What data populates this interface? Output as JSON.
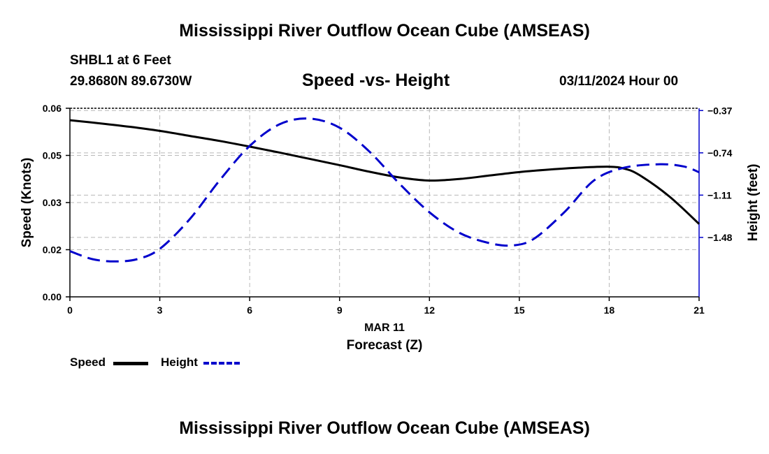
{
  "header": {
    "title": "Mississippi River Outflow Ocean Cube (AMSEAS)",
    "station": "SHBL1 at 6 Feet",
    "coords": "29.8680N  89.6730W",
    "subtitle": "Speed -vs- Height",
    "date": "03/11/2024 Hour 00"
  },
  "footer": {
    "title": "Mississippi River Outflow Ocean Cube (AMSEAS)"
  },
  "legend": {
    "speed_label": "Speed",
    "height_label": "Height"
  },
  "colors": {
    "speed": "#000000",
    "height": "#0000cc",
    "grid": "#b8b8b8"
  },
  "chart_data": {
    "type": "line",
    "title": "Speed -vs- Height",
    "xlabel": "Forecast (Z)",
    "xsublabel": "MAR 11",
    "ylabel": "Speed (Knots)",
    "y2label": "Height (feet)",
    "xlim": [
      0,
      21
    ],
    "ylim": [
      0.0,
      0.06
    ],
    "y2lim": [
      -2.0,
      -0.35
    ],
    "xticks": [
      0,
      3,
      6,
      9,
      12,
      15,
      18,
      21
    ],
    "xtick_labels": [
      "0",
      "3",
      "6",
      "9",
      "12",
      "15",
      "18",
      "21"
    ],
    "yticks": [
      0.0,
      0.015,
      0.03,
      0.045,
      0.06
    ],
    "ytick_labels": [
      "0.00",
      "0.02",
      "0.03",
      "0.05",
      "0.06"
    ],
    "y2ticks": [
      -0.37,
      -0.74,
      -1.11,
      -1.48
    ],
    "y2tick_labels": [
      "-0.37",
      "-0.74",
      "-1.11",
      "-1.48"
    ],
    "grid": true,
    "legend_position": "bottom-left",
    "series": [
      {
        "name": "Speed",
        "axis": "left",
        "style": "solid",
        "x": [
          0,
          1,
          2,
          3,
          4,
          5,
          6,
          7,
          8,
          9,
          10,
          11,
          12,
          13,
          14,
          15,
          16,
          17,
          18,
          18.5,
          19,
          20,
          21
        ],
        "values": [
          0.0562,
          0.0552,
          0.0541,
          0.0528,
          0.0512,
          0.0496,
          0.0478,
          0.0459,
          0.0439,
          0.0419,
          0.0398,
          0.038,
          0.037,
          0.0375,
          0.0386,
          0.0397,
          0.0405,
          0.0411,
          0.0414,
          0.0408,
          0.0388,
          0.032,
          0.0232
        ]
      },
      {
        "name": "Height",
        "axis": "right",
        "style": "dashed",
        "x": [
          0,
          0.75,
          1.5,
          2.25,
          3,
          4,
          5,
          6,
          7,
          8,
          9,
          10,
          11,
          12,
          13,
          14,
          14.8,
          15.5,
          16.5,
          17.5,
          18.5,
          19.7,
          20.5,
          21
        ],
        "values": [
          -1.6,
          -1.67,
          -1.69,
          -1.67,
          -1.58,
          -1.32,
          -0.98,
          -0.68,
          -0.49,
          -0.44,
          -0.52,
          -0.73,
          -1.01,
          -1.26,
          -1.44,
          -1.53,
          -1.55,
          -1.49,
          -1.26,
          -0.98,
          -0.87,
          -0.84,
          -0.86,
          -0.91
        ]
      }
    ]
  }
}
